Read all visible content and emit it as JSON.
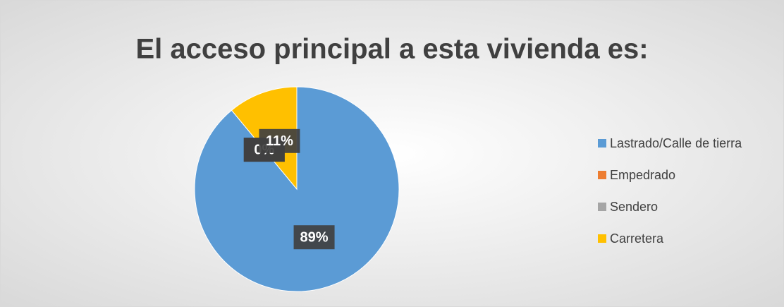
{
  "chart_data": {
    "type": "pie",
    "title": "El acceso principal a esta vivienda es:",
    "categories": [
      "Lastrado/Calle de tierra",
      "Empedrado",
      "Sendero",
      "Carretera"
    ],
    "values": [
      89,
      0,
      0,
      11
    ],
    "value_labels": [
      "89%",
      "0%",
      "0%",
      "11%"
    ],
    "colors": [
      "#5b9bd5",
      "#ed7d31",
      "#a5a5a5",
      "#ffc000"
    ],
    "legend": "right"
  }
}
